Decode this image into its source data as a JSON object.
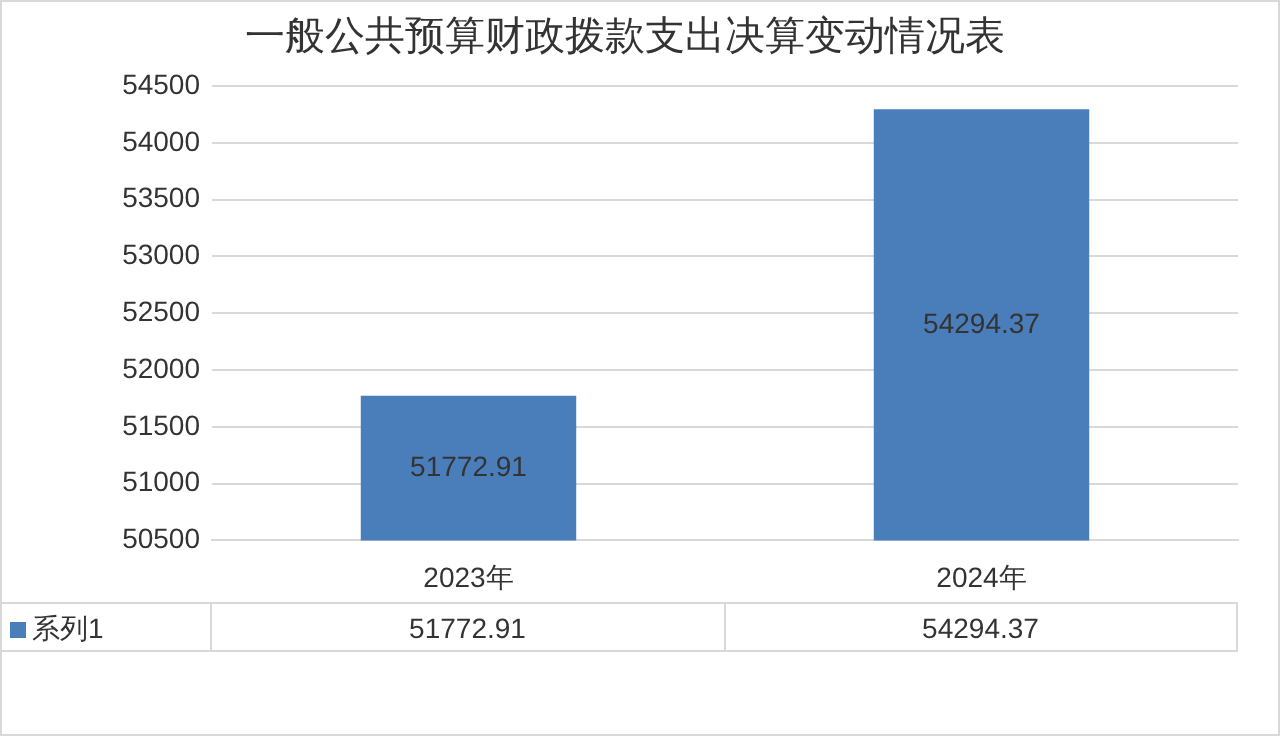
{
  "chart_data": {
    "type": "bar",
    "title": "一般公共预算财政拨款支出决算变动情况表",
    "categories": [
      "2023年",
      "2024年"
    ],
    "series": [
      {
        "name": "系列1",
        "color": "#4a7ebb",
        "values": [
          51772.91,
          54294.37
        ],
        "value_labels": [
          "51772.91",
          "54294.37"
        ]
      }
    ],
    "ylim": [
      50500,
      54500
    ],
    "yticks": [
      50500,
      51000,
      51500,
      52000,
      52500,
      53000,
      53500,
      54000,
      54500
    ],
    "grid": "y",
    "legend": "bottom"
  }
}
